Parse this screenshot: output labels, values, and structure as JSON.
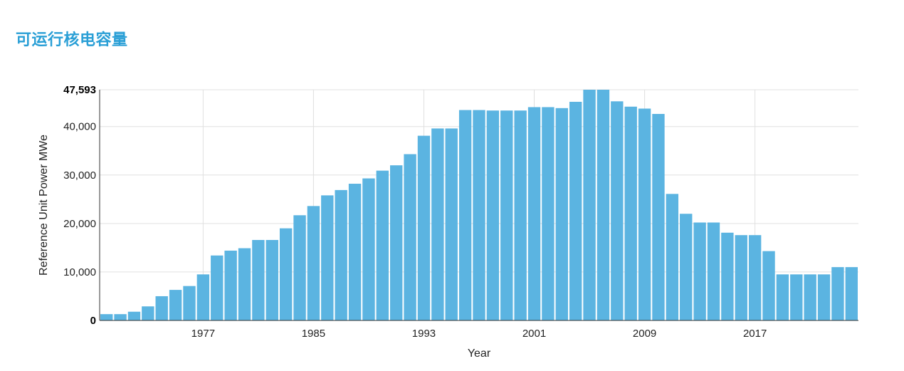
{
  "page": {
    "title": "可运行核电容量"
  },
  "chart_data": {
    "type": "bar",
    "title": "",
    "xlabel": "Year",
    "ylabel": "Reference Unit Power MWe",
    "ylim": [
      0,
      47593
    ],
    "y_ticks": [
      {
        "value": 0,
        "label": "0"
      },
      {
        "value": 10000,
        "label": "10,000"
      },
      {
        "value": 20000,
        "label": "20,000"
      },
      {
        "value": 30000,
        "label": "30,000"
      },
      {
        "value": 40000,
        "label": "40,000"
      },
      {
        "value": 47593,
        "label": "47,593"
      }
    ],
    "x_ticks": [
      "1977",
      "1985",
      "1993",
      "2001",
      "2009",
      "2017"
    ],
    "categories": [
      "1970",
      "1971",
      "1972",
      "1973",
      "1974",
      "1975",
      "1976",
      "1977",
      "1978",
      "1979",
      "1980",
      "1981",
      "1982",
      "1983",
      "1984",
      "1985",
      "1986",
      "1987",
      "1988",
      "1989",
      "1990",
      "1991",
      "1992",
      "1993",
      "1994",
      "1995",
      "1996",
      "1997",
      "1998",
      "1999",
      "2000",
      "2001",
      "2002",
      "2003",
      "2004",
      "2005",
      "2006",
      "2007",
      "2008",
      "2009",
      "2010",
      "2011",
      "2012",
      "2013",
      "2014",
      "2015",
      "2016",
      "2017",
      "2018",
      "2019",
      "2020",
      "2021",
      "2022",
      "2023",
      "2024"
    ],
    "values": [
      1300,
      1300,
      1800,
      2900,
      5000,
      6300,
      7100,
      9500,
      13400,
      14400,
      14900,
      16600,
      16600,
      19000,
      21700,
      23600,
      25800,
      26900,
      28200,
      29300,
      30900,
      32000,
      34300,
      38100,
      39600,
      39600,
      43400,
      43400,
      43300,
      43300,
      43300,
      44000,
      44000,
      43800,
      45100,
      47593,
      47593,
      45200,
      44100,
      43700,
      42600,
      26100,
      22000,
      20200,
      20200,
      18100,
      17600,
      17600,
      14300,
      9500,
      9500,
      9500,
      9500,
      11000,
      11000
    ],
    "bar_color": "#5bb4e1",
    "grid": true
  }
}
